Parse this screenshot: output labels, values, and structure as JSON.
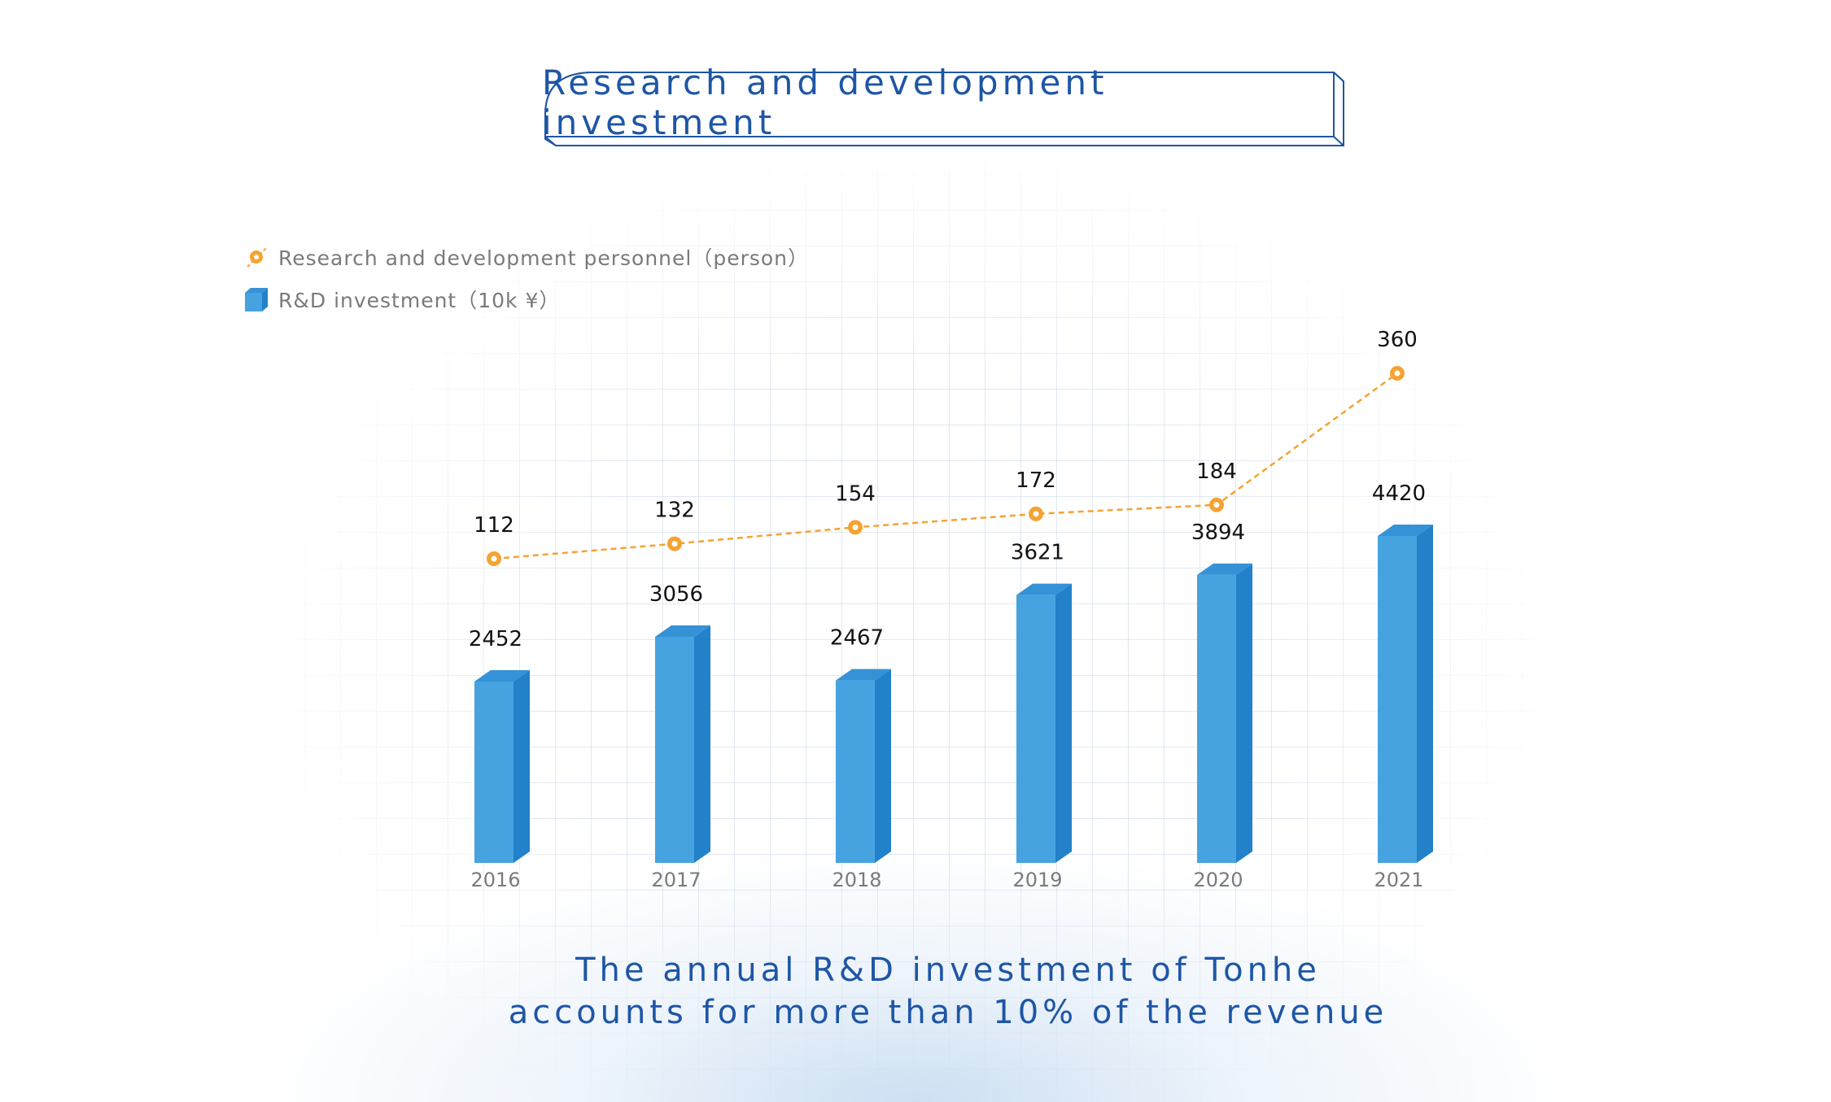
{
  "header": {
    "title": "Research and development investment"
  },
  "legend": {
    "line_label": "Research and development personnel（person）",
    "bar_label": "R&D investment（10k ¥）"
  },
  "caption": {
    "line1": "The annual R&D investment of Tonhe",
    "line2": "accounts for more than 10% of the revenue"
  },
  "colors": {
    "bar_front": "#47a3df",
    "bar_side": "#2381ca",
    "bar_top": "#3592d6",
    "line": "#f4a331",
    "title_blue": "#1e56a6"
  },
  "chart_data": {
    "type": "bar",
    "title": "Research and development investment",
    "categories": [
      "2016",
      "2017",
      "2018",
      "2019",
      "2020",
      "2021"
    ],
    "series": [
      {
        "name": "R&D investment（10k ¥）",
        "kind": "bar",
        "values": [
          2452,
          3056,
          2467,
          3621,
          3894,
          4420
        ]
      },
      {
        "name": "Research and development personnel（person）",
        "kind": "line",
        "values": [
          112,
          132,
          154,
          172,
          184,
          360
        ]
      }
    ],
    "xlabel": "",
    "ylabel": "",
    "grid": false,
    "legend_position": "top-left"
  }
}
